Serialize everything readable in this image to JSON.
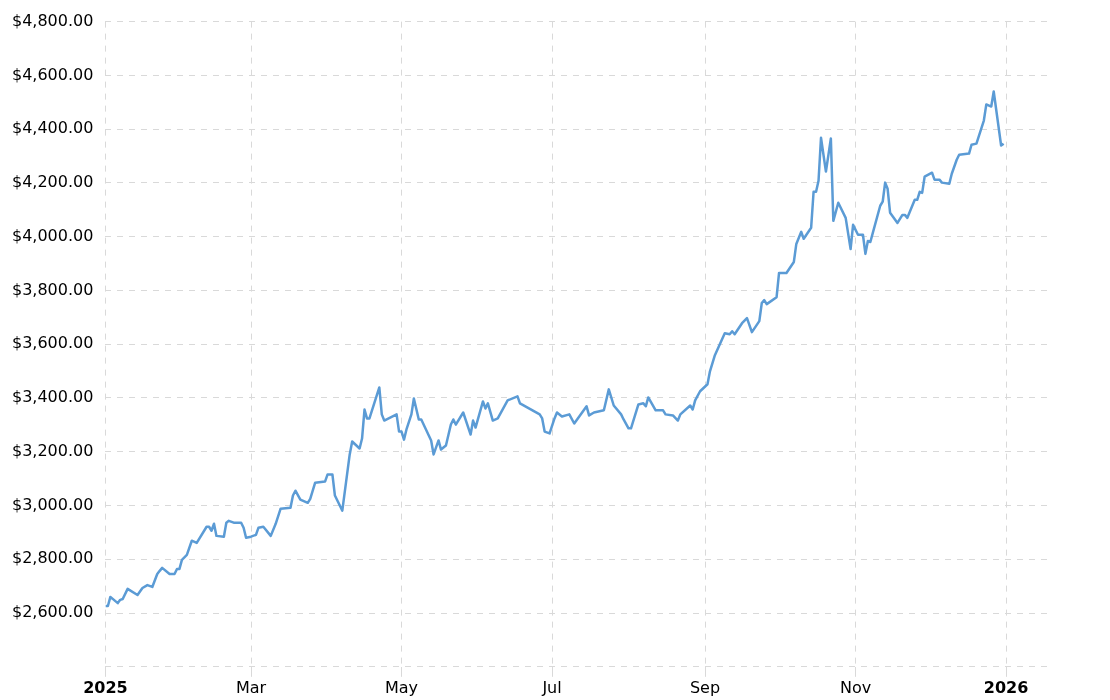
{
  "chart_data": {
    "type": "line",
    "x": [
      "2025-01-01",
      "2025-01-02",
      "2025-01-03",
      "2025-01-06",
      "2025-01-07",
      "2025-01-08",
      "2025-01-10",
      "2025-01-14",
      "2025-01-16",
      "2025-01-18",
      "2025-01-20",
      "2025-01-22",
      "2025-01-23",
      "2025-01-24",
      "2025-01-27",
      "2025-01-29",
      "2025-01-30",
      "2025-01-31",
      "2025-02-01",
      "2025-02-03",
      "2025-02-05",
      "2025-02-07",
      "2025-02-11",
      "2025-02-12",
      "2025-02-13",
      "2025-02-14",
      "2025-02-15",
      "2025-02-18",
      "2025-02-19",
      "2025-02-20",
      "2025-02-22",
      "2025-02-25",
      "2025-02-26",
      "2025-02-27",
      "2025-03-01",
      "2025-03-03",
      "2025-03-04",
      "2025-03-06",
      "2025-03-09",
      "2025-03-11",
      "2025-03-13",
      "2025-03-17",
      "2025-03-18",
      "2025-03-19",
      "2025-03-21",
      "2025-03-24",
      "2025-03-25",
      "2025-03-27",
      "2025-03-31",
      "2025-04-01",
      "2025-04-03",
      "2025-04-04",
      "2025-04-07",
      "2025-04-10",
      "2025-04-11",
      "2025-04-14",
      "2025-04-15",
      "2025-04-16",
      "2025-04-17",
      "2025-04-18",
      "2025-04-22",
      "2025-04-23",
      "2025-04-24",
      "2025-04-29",
      "2025-04-30",
      "2025-05-01",
      "2025-05-02",
      "2025-05-03",
      "2025-05-05",
      "2025-05-06",
      "2025-05-08",
      "2025-05-09",
      "2025-05-13",
      "2025-05-14",
      "2025-05-16",
      "2025-05-17",
      "2025-05-19",
      "2025-05-21",
      "2025-05-22",
      "2025-05-23",
      "2025-05-26",
      "2025-05-29",
      "2025-05-30",
      "2025-05-31",
      "2025-06-03",
      "2025-06-04",
      "2025-06-05",
      "2025-06-07",
      "2025-06-09",
      "2025-06-13",
      "2025-06-17",
      "2025-06-18",
      "2025-06-26",
      "2025-06-27",
      "2025-06-28",
      "2025-06-30",
      "2025-07-02",
      "2025-07-03",
      "2025-07-05",
      "2025-07-08",
      "2025-07-10",
      "2025-07-15",
      "2025-07-16",
      "2025-07-18",
      "2025-07-22",
      "2025-07-24",
      "2025-07-26",
      "2025-07-29",
      "2025-07-30",
      "2025-08-01",
      "2025-08-02",
      "2025-08-05",
      "2025-08-07",
      "2025-08-08",
      "2025-08-09",
      "2025-08-12",
      "2025-08-15",
      "2025-08-16",
      "2025-08-19",
      "2025-08-21",
      "2025-08-22",
      "2025-08-26",
      "2025-08-27",
      "2025-08-28",
      "2025-08-30",
      "2025-09-02",
      "2025-09-03",
      "2025-09-05",
      "2025-09-09",
      "2025-09-11",
      "2025-09-12",
      "2025-09-13",
      "2025-09-16",
      "2025-09-18",
      "2025-09-20",
      "2025-09-23",
      "2025-09-24",
      "2025-09-25",
      "2025-09-26",
      "2025-09-30",
      "2025-10-01",
      "2025-10-04",
      "2025-10-07",
      "2025-10-08",
      "2025-10-10",
      "2025-10-11",
      "2025-10-14",
      "2025-10-15",
      "2025-10-16",
      "2025-10-17",
      "2025-10-18",
      "2025-10-20",
      "2025-10-22",
      "2025-10-23",
      "2025-10-25",
      "2025-10-28",
      "2025-10-30",
      "2025-10-31",
      "2025-11-02",
      "2025-11-04",
      "2025-11-05",
      "2025-11-06",
      "2025-11-07",
      "2025-11-08",
      "2025-11-11",
      "2025-11-12",
      "2025-11-13",
      "2025-11-14",
      "2025-11-15",
      "2025-11-18",
      "2025-11-20",
      "2025-11-21",
      "2025-11-22",
      "2025-11-25",
      "2025-11-26",
      "2025-11-27",
      "2025-11-28",
      "2025-11-29",
      "2025-12-02",
      "2025-12-03",
      "2025-12-05",
      "2025-12-06",
      "2025-12-09",
      "2025-12-10",
      "2025-12-12",
      "2025-12-13",
      "2025-12-17",
      "2025-12-18",
      "2025-12-20",
      "2025-12-23",
      "2025-12-24",
      "2025-12-26",
      "2025-12-27",
      "2025-12-30",
      "2025-12-31"
    ],
    "series": [
      {
        "color": "#5b9bd5",
        "values": [
          2626,
          2626,
          2660,
          2637,
          2649,
          2652,
          2690,
          2667,
          2693,
          2704,
          2697,
          2745,
          2757,
          2768,
          2745,
          2745,
          2764,
          2764,
          2798,
          2816,
          2869,
          2861,
          2921,
          2921,
          2906,
          2932,
          2887,
          2884,
          2936,
          2943,
          2936,
          2936,
          2917,
          2880,
          2884,
          2891,
          2917,
          2921,
          2887,
          2932,
          2988,
          2992,
          3037,
          3055,
          3022,
          3010,
          3025,
          3085,
          3089,
          3115,
          3115,
          3037,
          2981,
          3190,
          3238,
          3212,
          3249,
          3357,
          3324,
          3324,
          3439,
          3339,
          3316,
          3339,
          3275,
          3275,
          3245,
          3283,
          3339,
          3398,
          3320,
          3320,
          3242,
          3190,
          3242,
          3208,
          3223,
          3301,
          3320,
          3301,
          3346,
          3264,
          3316,
          3290,
          3387,
          3361,
          3380,
          3316,
          3324,
          3391,
          3406,
          3380,
          3339,
          3324,
          3275,
          3268,
          3324,
          3346,
          3331,
          3339,
          3305,
          3369,
          3335,
          3346,
          3354,
          3432,
          3372,
          3339,
          3320,
          3287,
          3287,
          3376,
          3380,
          3369,
          3402,
          3354,
          3354,
          3339,
          3335,
          3316,
          3339,
          3372,
          3357,
          3391,
          3425,
          3451,
          3499,
          3559,
          3641,
          3637,
          3648,
          3637,
          3678,
          3697,
          3645,
          3686,
          3753,
          3764,
          3749,
          3775,
          3865,
          3865,
          3906,
          3973,
          4018,
          3992,
          4033,
          4167,
          4167,
          4208,
          4368,
          4242,
          4365,
          4059,
          4126,
          4070,
          3954,
          4044,
          4007,
          4007,
          3936,
          3984,
          3980,
          4014,
          4115,
          4130,
          4201,
          4178,
          4089,
          4051,
          4081,
          4081,
          4070,
          4137,
          4137,
          4167,
          4163,
          4223,
          4238,
          4212,
          4212,
          4201,
          4197,
          4234,
          4286,
          4305,
          4309,
          4342,
          4346,
          4432,
          4492,
          4484,
          4540,
          4339,
          4346
        ]
      }
    ],
    "xlim": [
      "2025-01-01",
      "2026-01-18"
    ],
    "xticks": [
      {
        "value": "2025-01-01",
        "label": "2025"
      },
      {
        "value": "2025-03-01",
        "label": "Mar"
      },
      {
        "value": "2025-05-01",
        "label": "May"
      },
      {
        "value": "2025-07-01",
        "label": "Jul"
      },
      {
        "value": "2025-09-01",
        "label": "Sep"
      },
      {
        "value": "2025-11-01",
        "label": "Nov"
      },
      {
        "value": "2026-01-01",
        "label": "2026"
      }
    ],
    "ylim": [
      2400,
      4800
    ],
    "yticks": [
      {
        "value": 2400,
        "label": null
      },
      {
        "value": 2600,
        "label": "$2,600.00"
      },
      {
        "value": 2800,
        "label": "$2,800.00"
      },
      {
        "value": 3000,
        "label": "$3,000.00"
      },
      {
        "value": 3200,
        "label": "$3,200.00"
      },
      {
        "value": 3400,
        "label": "$3,400.00"
      },
      {
        "value": 3600,
        "label": "$3,600.00"
      },
      {
        "value": 3800,
        "label": "$3,800.00"
      },
      {
        "value": 4000,
        "label": "$4,000.00"
      },
      {
        "value": 4200,
        "label": "$4,200.00"
      },
      {
        "value": 4400,
        "label": "$4,400.00"
      },
      {
        "value": 4600,
        "label": "$4,600.00"
      },
      {
        "value": 4800,
        "label": "$4,800.00"
      }
    ],
    "grid": true,
    "legend": false,
    "marker": "none",
    "line_style": "solid"
  }
}
